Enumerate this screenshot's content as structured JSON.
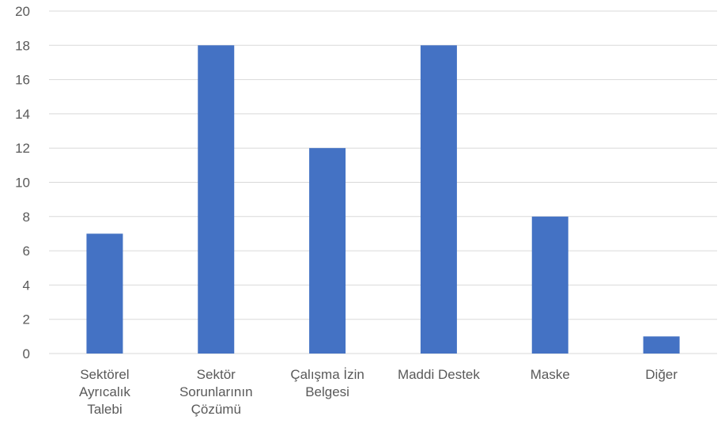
{
  "chart_data": {
    "type": "bar",
    "categories": [
      [
        "Sektörel",
        "Ayrıcalık",
        "Talebi"
      ],
      [
        "Sektör",
        "Sorunlarının",
        "Çözümü"
      ],
      [
        "Çalışma İzin",
        "Belgesi"
      ],
      [
        "Maddi Destek"
      ],
      [
        "Maske"
      ],
      [
        "Diğer"
      ]
    ],
    "values": [
      7,
      18,
      12,
      18,
      8,
      1
    ],
    "title": "",
    "xlabel": "",
    "ylabel": "",
    "ylim": [
      0,
      20
    ],
    "yticks": [
      0,
      2,
      4,
      6,
      8,
      10,
      12,
      14,
      16,
      18,
      20
    ],
    "grid": true,
    "legend": "none",
    "bar_color": "#4472C4",
    "grid_color": "#D9D9D9",
    "label_color": "#595959"
  }
}
